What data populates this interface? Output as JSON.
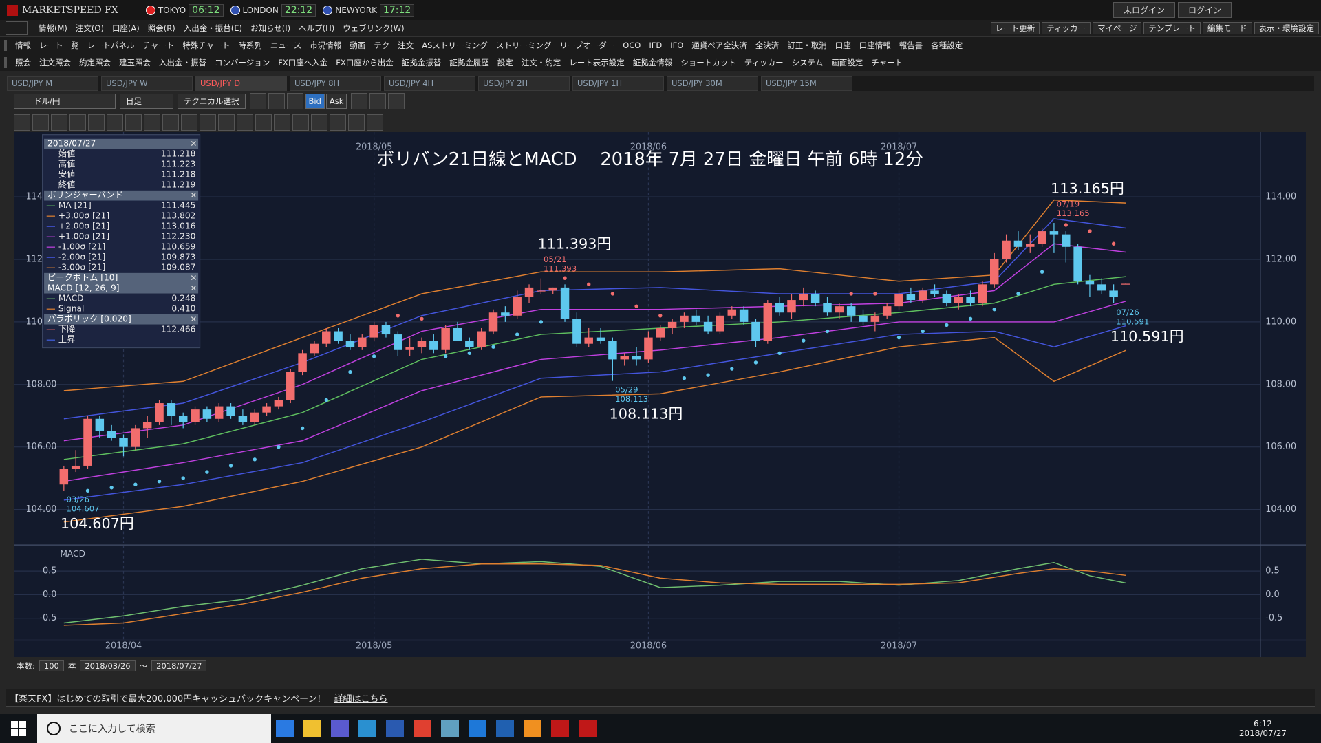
{
  "window": {
    "app_title": "MARKETSPEED FX",
    "clocks": [
      {
        "city": "TOKYO",
        "time": "06:12",
        "color": "#e02020"
      },
      {
        "city": "LONDON",
        "time": "22:12",
        "color": "#3050b0"
      },
      {
        "city": "NEWYORK",
        "time": "17:12",
        "color": "#3050b0"
      }
    ],
    "login": [
      "未ログイン",
      "ログイン"
    ],
    "menu": [
      "情報(M)",
      "注文(O)",
      "口座(A)",
      "照会(R)",
      "入出金・振替(E)",
      "お知らせ(I)",
      "ヘルプ(H)",
      "ウェブリンク(W)"
    ],
    "menu_right": [
      "レート更新",
      "ティッカー",
      "マイページ",
      "テンプレート",
      "編集モード",
      "表示・環境設定"
    ],
    "toolbar1": [
      "情報",
      "レート一覧",
      "レートパネル",
      "チャート",
      "特殊チャート",
      "時系列",
      "ニュース",
      "市況情報",
      "動画",
      "テク",
      "注文",
      "ASストリーミング",
      "ストリーミング",
      "リーブオーダー",
      "OCO",
      "IFD",
      "IFO",
      "通貨ペア全決済",
      "全決済",
      "訂正・取消",
      "口座",
      "口座情報",
      "報告書",
      "各種設定"
    ],
    "toolbar2": [
      "照会",
      "注文照会",
      "約定照会",
      "建玉照会",
      "入出金・振替",
      "コンバージョン",
      "FX口座へ入金",
      "FX口座から出金",
      "証拠金振替",
      "証拠金履歴",
      "設定",
      "注文・約定",
      "レート表示設定",
      "証拠金情報",
      "ショートカット",
      "ティッカー",
      "システム",
      "画面設定",
      "チャート"
    ],
    "tabs": [
      "USD/JPY M",
      "USD/JPY W",
      "USD/JPY D",
      "USD/JPY 8H",
      "USD/JPY 4H",
      "USD/JPY 2H",
      "USD/JPY 1H",
      "USD/JPY 30M",
      "USD/JPY 15M"
    ],
    "active_tab": 2,
    "chart_toolbar": {
      "pair": "ドル/円",
      "period": "日足",
      "technical": "テクニカル選択",
      "bid": "Bid",
      "ask": "Ask"
    },
    "bottom": {
      "count_label": "本数:",
      "count": "100",
      "unit": "本",
      "from": "2018/03/26",
      "sep": "～",
      "to": "2018/07/27"
    },
    "banner": {
      "text": "【楽天FX】はじめての取引で最大200,000円キャッシュバックキャンペーン！",
      "link": "詳細はこちら"
    },
    "taskbar": {
      "search": "ここに入力して検索",
      "time": "6:12",
      "date": "2018/07/27"
    }
  },
  "data_window": {
    "date": "2018/07/27",
    "rows": [
      {
        "label": "始値",
        "value": "111.218"
      },
      {
        "label": "高値",
        "value": "111.223"
      },
      {
        "label": "安値",
        "value": "111.218"
      },
      {
        "label": "終値",
        "value": "111.219"
      }
    ],
    "sections": [
      {
        "title": "ボリンジャーバンド",
        "rows": [
          {
            "label": "MA [21]",
            "value": "111.445",
            "color": "#5fbf5f"
          },
          {
            "label": "+3.00σ [21]",
            "value": "113.802",
            "color": "#e08030"
          },
          {
            "label": "+2.00σ [21]",
            "value": "113.016",
            "color": "#4455dd"
          },
          {
            "label": "+1.00σ [21]",
            "value": "112.230",
            "color": "#c040e0"
          },
          {
            "label": "-1.00σ [21]",
            "value": "110.659",
            "color": "#c040e0"
          },
          {
            "label": "-2.00σ [21]",
            "value": "109.873",
            "color": "#4455dd"
          },
          {
            "label": "-3.00σ [21]",
            "value": "109.087",
            "color": "#e08030"
          }
        ]
      },
      {
        "title": "ピークボトム [10]",
        "rows": []
      },
      {
        "title": "MACD [12, 26, 9]",
        "rows": [
          {
            "label": "MACD",
            "value": "0.248",
            "color": "#70c070"
          },
          {
            "label": "Signal",
            "value": "0.410",
            "color": "#e08030"
          }
        ]
      },
      {
        "title": "パラボリック [0.020]",
        "rows": [
          {
            "label": "下降",
            "value": "112.466",
            "color": "#e06060"
          },
          {
            "label": "上昇",
            "color": "#4060e0"
          }
        ]
      }
    ]
  },
  "chart_data": [
    {
      "type": "candlestick",
      "title": "ボリバン21日線とMACD　 2018年 7月 27日 金曜日 午前 6時 12分",
      "ohlc": [
        [
          104.8,
          105.4,
          104.607,
          105.3
        ],
        [
          105.3,
          105.9,
          105.2,
          105.4
        ],
        [
          105.4,
          107.0,
          105.3,
          106.9
        ],
        [
          106.9,
          107.0,
          106.3,
          106.5
        ],
        [
          106.5,
          106.7,
          106.2,
          106.3
        ],
        [
          106.3,
          106.4,
          105.7,
          106.0
        ],
        [
          106.0,
          106.7,
          105.9,
          106.6
        ],
        [
          106.6,
          107.0,
          106.3,
          106.8
        ],
        [
          106.8,
          107.5,
          106.7,
          107.4
        ],
        [
          107.4,
          107.5,
          106.7,
          107.0
        ],
        [
          107.0,
          107.1,
          106.6,
          106.8
        ],
        [
          106.8,
          107.3,
          106.7,
          107.2
        ],
        [
          107.2,
          107.3,
          106.8,
          106.9
        ],
        [
          106.9,
          107.4,
          106.8,
          107.3
        ],
        [
          107.3,
          107.4,
          106.9,
          107.0
        ],
        [
          107.0,
          107.2,
          106.7,
          106.8
        ],
        [
          106.8,
          107.2,
          106.7,
          107.1
        ],
        [
          107.1,
          107.4,
          107.0,
          107.3
        ],
        [
          107.3,
          107.6,
          107.2,
          107.5
        ],
        [
          107.5,
          108.5,
          107.4,
          108.4
        ],
        [
          108.4,
          109.1,
          108.3,
          109.0
        ],
        [
          109.0,
          109.4,
          108.9,
          109.3
        ],
        [
          109.3,
          109.8,
          109.2,
          109.7
        ],
        [
          109.7,
          109.8,
          109.3,
          109.4
        ],
        [
          109.4,
          109.6,
          109.1,
          109.2
        ],
        [
          109.2,
          109.6,
          109.1,
          109.5
        ],
        [
          109.5,
          110.0,
          109.4,
          109.9
        ],
        [
          109.9,
          110.0,
          109.5,
          109.6
        ],
        [
          109.6,
          109.7,
          108.9,
          109.1
        ],
        [
          109.1,
          109.5,
          108.9,
          109.2
        ],
        [
          109.2,
          109.5,
          109.0,
          109.4
        ],
        [
          109.4,
          109.6,
          109.0,
          109.1
        ],
        [
          109.1,
          109.9,
          109.0,
          109.8
        ],
        [
          109.8,
          110.0,
          109.4,
          109.4
        ],
        [
          109.4,
          109.5,
          109.1,
          109.2
        ],
        [
          109.2,
          109.8,
          109.1,
          109.7
        ],
        [
          109.7,
          110.4,
          109.6,
          110.3
        ],
        [
          110.3,
          110.5,
          110.0,
          110.2
        ],
        [
          110.2,
          111.0,
          110.1,
          110.8
        ],
        [
          110.8,
          111.2,
          110.6,
          111.1
        ],
        [
          111.0,
          111.393,
          110.9,
          111.0
        ],
        [
          111.0,
          111.1,
          110.9,
          111.1
        ],
        [
          111.1,
          111.2,
          110.0,
          110.1
        ],
        [
          110.1,
          110.3,
          109.2,
          109.3
        ],
        [
          109.3,
          109.8,
          109.2,
          109.5
        ],
        [
          109.5,
          109.8,
          109.3,
          109.4
        ],
        [
          109.4,
          109.5,
          108.113,
          108.8
        ],
        [
          108.8,
          109.0,
          108.6,
          108.9
        ],
        [
          108.9,
          109.2,
          108.6,
          108.8
        ],
        [
          108.8,
          109.7,
          108.7,
          109.5
        ],
        [
          109.5,
          109.9,
          109.4,
          109.8
        ],
        [
          109.8,
          110.1,
          109.6,
          110.0
        ],
        [
          110.0,
          110.3,
          109.8,
          110.2
        ],
        [
          110.2,
          110.4,
          109.9,
          110.0
        ],
        [
          110.0,
          110.2,
          109.6,
          109.7
        ],
        [
          109.7,
          110.3,
          109.6,
          110.2
        ],
        [
          110.2,
          110.5,
          110.1,
          110.4
        ],
        [
          110.4,
          110.5,
          109.9,
          110.0
        ],
        [
          110.0,
          110.1,
          109.2,
          109.4
        ],
        [
          109.4,
          110.7,
          109.3,
          110.6
        ],
        [
          110.6,
          110.8,
          110.2,
          110.3
        ],
        [
          110.3,
          110.9,
          110.1,
          110.7
        ],
        [
          110.7,
          111.1,
          110.5,
          110.9
        ],
        [
          110.9,
          111.0,
          110.5,
          110.6
        ],
        [
          110.6,
          110.8,
          110.2,
          110.3
        ],
        [
          110.3,
          110.6,
          110.1,
          110.5
        ],
        [
          110.5,
          110.6,
          110.0,
          110.2
        ],
        [
          110.2,
          110.4,
          109.9,
          110.0
        ],
        [
          110.0,
          110.3,
          109.7,
          110.2
        ],
        [
          110.2,
          110.6,
          110.1,
          110.5
        ],
        [
          110.5,
          111.0,
          110.4,
          110.9
        ],
        [
          110.9,
          111.1,
          110.6,
          110.7
        ],
        [
          110.7,
          111.1,
          110.6,
          111.0
        ],
        [
          111.0,
          111.2,
          110.8,
          110.9
        ],
        [
          110.9,
          111.0,
          110.5,
          110.6
        ],
        [
          110.6,
          110.9,
          110.4,
          110.8
        ],
        [
          110.8,
          111.0,
          110.5,
          110.6
        ],
        [
          110.6,
          111.3,
          110.5,
          111.2
        ],
        [
          111.2,
          112.2,
          111.1,
          112.0
        ],
        [
          112.0,
          112.8,
          111.9,
          112.6
        ],
        [
          112.6,
          112.9,
          112.3,
          112.4
        ],
        [
          112.4,
          112.8,
          112.2,
          112.5
        ],
        [
          112.5,
          113.0,
          112.4,
          112.9
        ],
        [
          112.9,
          113.165,
          112.2,
          112.8
        ],
        [
          112.8,
          112.9,
          111.9,
          112.4
        ],
        [
          112.4,
          112.5,
          111.2,
          111.3
        ],
        [
          111.3,
          111.5,
          110.8,
          111.2
        ],
        [
          111.2,
          111.4,
          110.9,
          111.0
        ],
        [
          111.0,
          111.2,
          110.591,
          110.8
        ],
        [
          111.218,
          111.223,
          111.218,
          111.219
        ]
      ],
      "up_color": "#f26d6d",
      "down_color": "#5ec8ee",
      "xlim": [
        -4.2,
        100.3
      ],
      "xticks": [
        {
          "value": 5,
          "label": "2018/04"
        },
        {
          "value": 26,
          "label": "2018/05"
        },
        {
          "value": 49,
          "label": "2018/06"
        },
        {
          "value": 70,
          "label": "2018/07"
        }
      ],
      "ylim": [
        102.92,
        116.07
      ],
      "yticks": [
        {
          "value": 104,
          "label": "104.00"
        },
        {
          "value": 106,
          "label": "106.00"
        },
        {
          "value": 108,
          "label": "108.00"
        },
        {
          "value": 110,
          "label": "110.00"
        },
        {
          "value": 112,
          "label": "112.00"
        },
        {
          "value": 114,
          "label": "114.00"
        }
      ],
      "grid": true,
      "bands": {
        "x": [
          0,
          10,
          20,
          30,
          40,
          50,
          60,
          70,
          78,
          83,
          89
        ],
        "series": [
          {
            "color": "#e08030",
            "values": [
              107.8,
              108.1,
              109.5,
              110.9,
              111.6,
              111.6,
              111.7,
              111.3,
              111.5,
              113.9,
              113.8
            ]
          },
          {
            "color": "#4455dd",
            "values": [
              106.9,
              107.4,
              108.7,
              110.2,
              111.0,
              111.1,
              110.9,
              110.9,
              111.3,
              113.3,
              113.0
            ]
          },
          {
            "color": "#c040e0",
            "values": [
              106.2,
              106.7,
              108.0,
              109.7,
              110.4,
              110.4,
              110.5,
              110.6,
              111.0,
              112.5,
              112.23
            ]
          },
          {
            "color": "#5fbf5f",
            "values": [
              105.6,
              106.1,
              107.1,
              108.8,
              109.6,
              109.8,
              110.0,
              110.3,
              110.6,
              111.2,
              111.445
            ]
          },
          {
            "color": "#c040e0",
            "values": [
              104.9,
              105.5,
              106.2,
              107.8,
              108.8,
              109.1,
              109.5,
              110.0,
              110.0,
              110.0,
              110.659
            ]
          },
          {
            "color": "#4455dd",
            "values": [
              104.3,
              104.8,
              105.5,
              106.8,
              108.2,
              108.4,
              109.0,
              109.6,
              109.7,
              109.2,
              109.873
            ]
          },
          {
            "color": "#e08030",
            "values": [
              103.6,
              104.1,
              104.9,
              106.0,
              107.6,
              107.7,
              108.4,
              109.2,
              109.5,
              108.1,
              109.087
            ]
          }
        ]
      },
      "sar": {
        "x": [
          2,
          4,
          6,
          8,
          10,
          12,
          14,
          16,
          18,
          20,
          22,
          24,
          26,
          28,
          30,
          32,
          34,
          36,
          38,
          40,
          42,
          44,
          46,
          48,
          50,
          52,
          54,
          56,
          58,
          60,
          62,
          64,
          66,
          68,
          70,
          72,
          74,
          76,
          78,
          80,
          82,
          84,
          86,
          88
        ],
        "values": [
          104.6,
          104.7,
          104.8,
          104.9,
          105.0,
          105.2,
          105.4,
          105.6,
          106.0,
          106.6,
          107.5,
          108.4,
          108.9,
          110.2,
          110.1,
          108.9,
          109.0,
          109.2,
          109.6,
          110.0,
          111.4,
          111.2,
          110.9,
          110.5,
          110.2,
          108.2,
          108.3,
          108.5,
          108.7,
          109.0,
          109.4,
          109.7,
          110.9,
          110.9,
          109.5,
          109.7,
          109.9,
          110.1,
          110.4,
          110.9,
          111.6,
          113.1,
          112.9,
          112.5
        ],
        "above_color": "#f26d6d",
        "below_color": "#5ec8ee"
      },
      "annotations": [
        {
          "label": "104.607円",
          "date": "03/26",
          "value": 104.607,
          "x": 0
        },
        {
          "label": "111.393円",
          "date": "05/21",
          "value": 111.393,
          "x": 40
        },
        {
          "label": "108.113円",
          "date": "05/29",
          "value": 108.113,
          "x": 46
        },
        {
          "label": "113.165円",
          "date": "07/19",
          "value": 113.165,
          "x": 83
        },
        {
          "label": "110.591円",
          "date": "07/26",
          "value": 110.591,
          "x": 88
        }
      ]
    },
    {
      "type": "line",
      "title": "MACD",
      "x": [
        0,
        5,
        10,
        15,
        20,
        25,
        30,
        35,
        40,
        45,
        50,
        55,
        60,
        65,
        70,
        75,
        80,
        83,
        86,
        89
      ],
      "series": [
        {
          "color": "#70c070",
          "values": [
            -0.6,
            -0.45,
            -0.25,
            -0.1,
            0.2,
            0.55,
            0.75,
            0.65,
            0.7,
            0.6,
            0.15,
            0.2,
            0.28,
            0.28,
            0.2,
            0.3,
            0.55,
            0.68,
            0.4,
            0.248
          ]
        },
        {
          "color": "#e08030",
          "values": [
            -0.65,
            -0.6,
            -0.4,
            -0.2,
            0.05,
            0.35,
            0.55,
            0.65,
            0.65,
            0.62,
            0.35,
            0.25,
            0.22,
            0.22,
            0.22,
            0.25,
            0.45,
            0.55,
            0.5,
            0.41
          ]
        }
      ],
      "xlim": [
        -4.2,
        100.3
      ],
      "xticks": [
        {
          "value": 5,
          "label": "2018/04"
        },
        {
          "value": 26,
          "label": "2018/05"
        },
        {
          "value": 49,
          "label": "2018/06"
        },
        {
          "value": 70,
          "label": "2018/07"
        }
      ],
      "ylim": [
        -0.964,
        1.036
      ],
      "yticks": [
        0.5,
        {
          "value": 0,
          "label": "0.0"
        },
        -0.5
      ],
      "grid": true
    }
  ]
}
